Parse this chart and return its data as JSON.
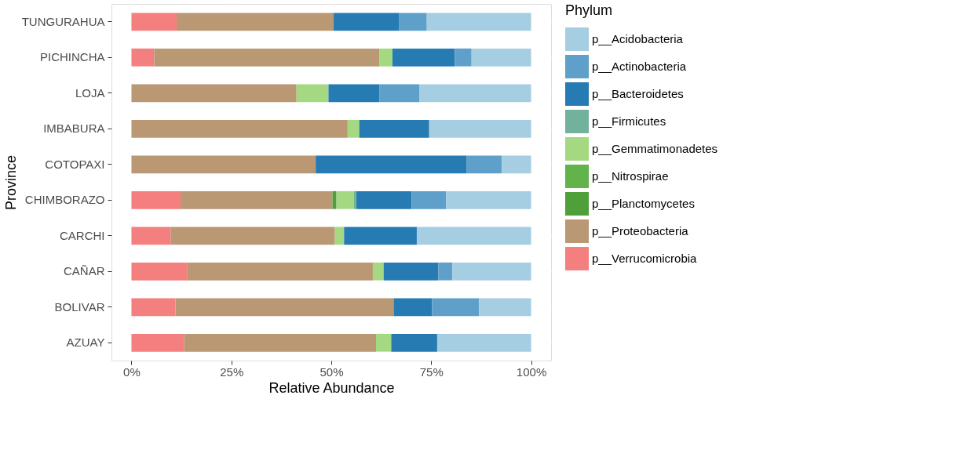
{
  "chart_data": {
    "type": "bar",
    "orientation": "horizontal",
    "stacked": true,
    "xlabel": "Relative Abundance",
    "ylabel": "Province",
    "legend_title": "Phylum",
    "legend": "right",
    "grid": true,
    "categories": [
      "TUNGURAHUA",
      "PICHINCHA",
      "LOJA",
      "IMBABURA",
      "COTOPAXI",
      "CHIMBORAZO",
      "CARCHI",
      "CAÑAR",
      "BOLIVAR",
      "AZUAY"
    ],
    "xlim": [
      -5,
      105
    ],
    "xticks": [
      {
        "value": 0,
        "label": "0%"
      },
      {
        "value": 25,
        "label": "25%"
      },
      {
        "value": 50,
        "label": "50%"
      },
      {
        "value": 75,
        "label": "75%"
      },
      {
        "value": 100,
        "label": "100%"
      }
    ],
    "series": [
      {
        "name": "p__Verrucomicrobia",
        "color": "#f47f7f",
        "values": [
          11.3,
          5.7,
          null,
          null,
          null,
          12.3,
          9.8,
          13.9,
          11.0,
          13.2
        ]
      },
      {
        "name": "p__Proteobacteria",
        "color": "#b99873",
        "values": [
          39.3,
          56.4,
          41.3,
          54.1,
          46.1,
          38.0,
          41.1,
          46.5,
          54.6,
          48.0
        ]
      },
      {
        "name": "p__Planctomycetes",
        "color": "#4f9f3b",
        "values": [
          null,
          null,
          null,
          null,
          null,
          1.0,
          null,
          null,
          null,
          null
        ]
      },
      {
        "name": "p__Nitrospirae",
        "color": "#63b34d",
        "values": [
          null,
          null,
          null,
          null,
          null,
          null,
          null,
          null,
          null,
          null
        ]
      },
      {
        "name": "p__Gemmatimonadetes",
        "color": "#a5d981",
        "values": [
          null,
          3.2,
          8.0,
          2.9,
          null,
          4.4,
          2.3,
          2.7,
          null,
          3.8
        ]
      },
      {
        "name": "p__Firmicutes",
        "color": "#72b29c",
        "values": [
          null,
          null,
          null,
          null,
          null,
          0.6,
          null,
          null,
          null,
          null
        ]
      },
      {
        "name": "p__Bacteroidetes",
        "color": "#267bb3",
        "values": [
          16.3,
          15.6,
          12.8,
          17.5,
          37.7,
          13.8,
          18.2,
          13.7,
          9.6,
          11.5
        ]
      },
      {
        "name": "p__Actinobacteria",
        "color": "#5fa0ca",
        "values": [
          7.0,
          4.2,
          9.9,
          null,
          8.9,
          8.6,
          null,
          3.5,
          11.8,
          null
        ]
      },
      {
        "name": "p__Acidobacteria",
        "color": "#a6cee3",
        "values": [
          26.1,
          14.9,
          28.0,
          25.5,
          7.3,
          21.3,
          28.6,
          19.7,
          13.0,
          23.5
        ]
      }
    ]
  }
}
